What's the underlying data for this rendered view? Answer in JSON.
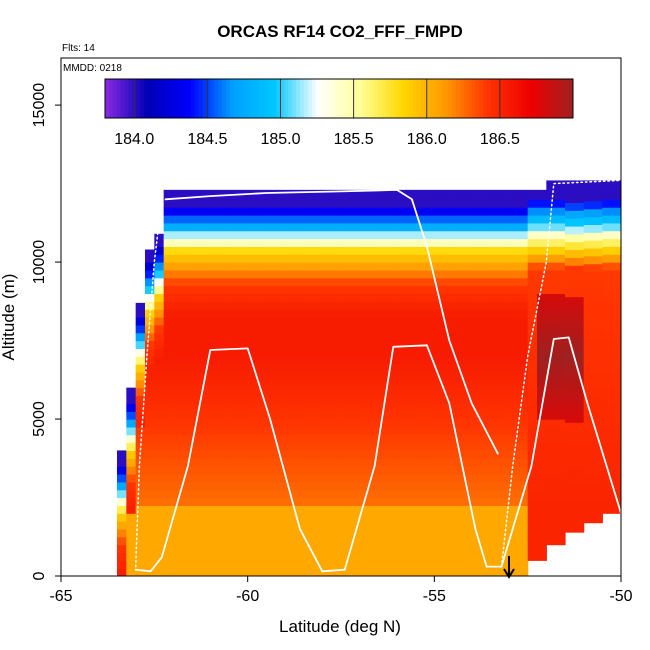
{
  "chart_data": {
    "type": "heatmap",
    "title": "ORCAS RF14 CO2_FFF_FMPD",
    "xlabel": "Latitude (deg N)",
    "ylabel": "Altitude (m)",
    "xlim": [
      -65,
      -50
    ],
    "ylim": [
      0,
      16500
    ],
    "x_ticks": [
      -65,
      -60,
      -55,
      -50
    ],
    "x_tick_labels": [
      "-65",
      "-60",
      "-55",
      "-50"
    ],
    "y_ticks": [
      0,
      5000,
      10000,
      15000
    ],
    "y_tick_labels": [
      "0",
      "5000",
      "10000",
      "15000"
    ],
    "annotation_flts": "Flts: 14",
    "annotation_mmdd": "MMDD: 0218",
    "colorbar": {
      "range": [
        183.8,
        187.0
      ],
      "ticks": [
        184.0,
        184.5,
        185.0,
        185.5,
        186.0,
        186.5
      ],
      "tick_labels": [
        "184.0",
        "184.5",
        "185.0",
        "185.5",
        "186.0",
        "186.5"
      ],
      "colors": [
        "#8a2be2",
        "#0000b4",
        "#0000ff",
        "#00a0ff",
        "#00c8ff",
        "#ffffff",
        "#ffff99",
        "#ffd700",
        "#ff9900",
        "#ff3300",
        "#ee0000",
        "#a02020"
      ],
      "dividers": [
        184.0,
        184.5,
        185.0,
        185.5,
        186.0,
        186.5
      ]
    },
    "flight_track": [
      [
        -62.2,
        12000
      ],
      [
        -61.0,
        12100
      ],
      [
        -59.5,
        12200
      ],
      [
        -57.5,
        12250
      ],
      [
        -56.0,
        12300
      ],
      [
        -55.6,
        12000
      ],
      [
        -55.2,
        10500
      ],
      [
        -54.6,
        7500
      ],
      [
        -54.0,
        5500
      ],
      [
        -53.3,
        3900
      ]
    ],
    "flight_track_2": [
      [
        -63.0,
        200
      ],
      [
        -62.6,
        150
      ],
      [
        -62.3,
        600
      ],
      [
        -61.6,
        3500
      ],
      [
        -61.0,
        7200
      ],
      [
        -60.0,
        7250
      ],
      [
        -59.4,
        5000
      ],
      [
        -58.6,
        1500
      ],
      [
        -58.0,
        150
      ],
      [
        -57.4,
        200
      ],
      [
        -56.6,
        3500
      ],
      [
        -56.1,
        7300
      ],
      [
        -55.2,
        7350
      ],
      [
        -54.6,
        5500
      ],
      [
        -53.9,
        1500
      ],
      [
        -53.6,
        300
      ],
      [
        -53.2,
        300
      ],
      [
        -52.4,
        3500
      ],
      [
        -51.8,
        7550
      ],
      [
        -51.4,
        7600
      ],
      [
        -50.9,
        5500
      ],
      [
        -50.0,
        2000
      ]
    ],
    "dotted_track": [
      [
        -63.0,
        300
      ],
      [
        -62.9,
        3500
      ],
      [
        -62.7,
        7000
      ],
      [
        -62.5,
        10000
      ],
      [
        -62.3,
        12000
      ]
    ],
    "dotted_track_2": [
      [
        -53.2,
        300
      ],
      [
        -52.9,
        3500
      ],
      [
        -52.5,
        7000
      ],
      [
        -52.0,
        10000
      ],
      [
        -51.8,
        12500
      ],
      [
        -50.0,
        12600
      ]
    ],
    "arrow_marker_lat": -53.0
  }
}
